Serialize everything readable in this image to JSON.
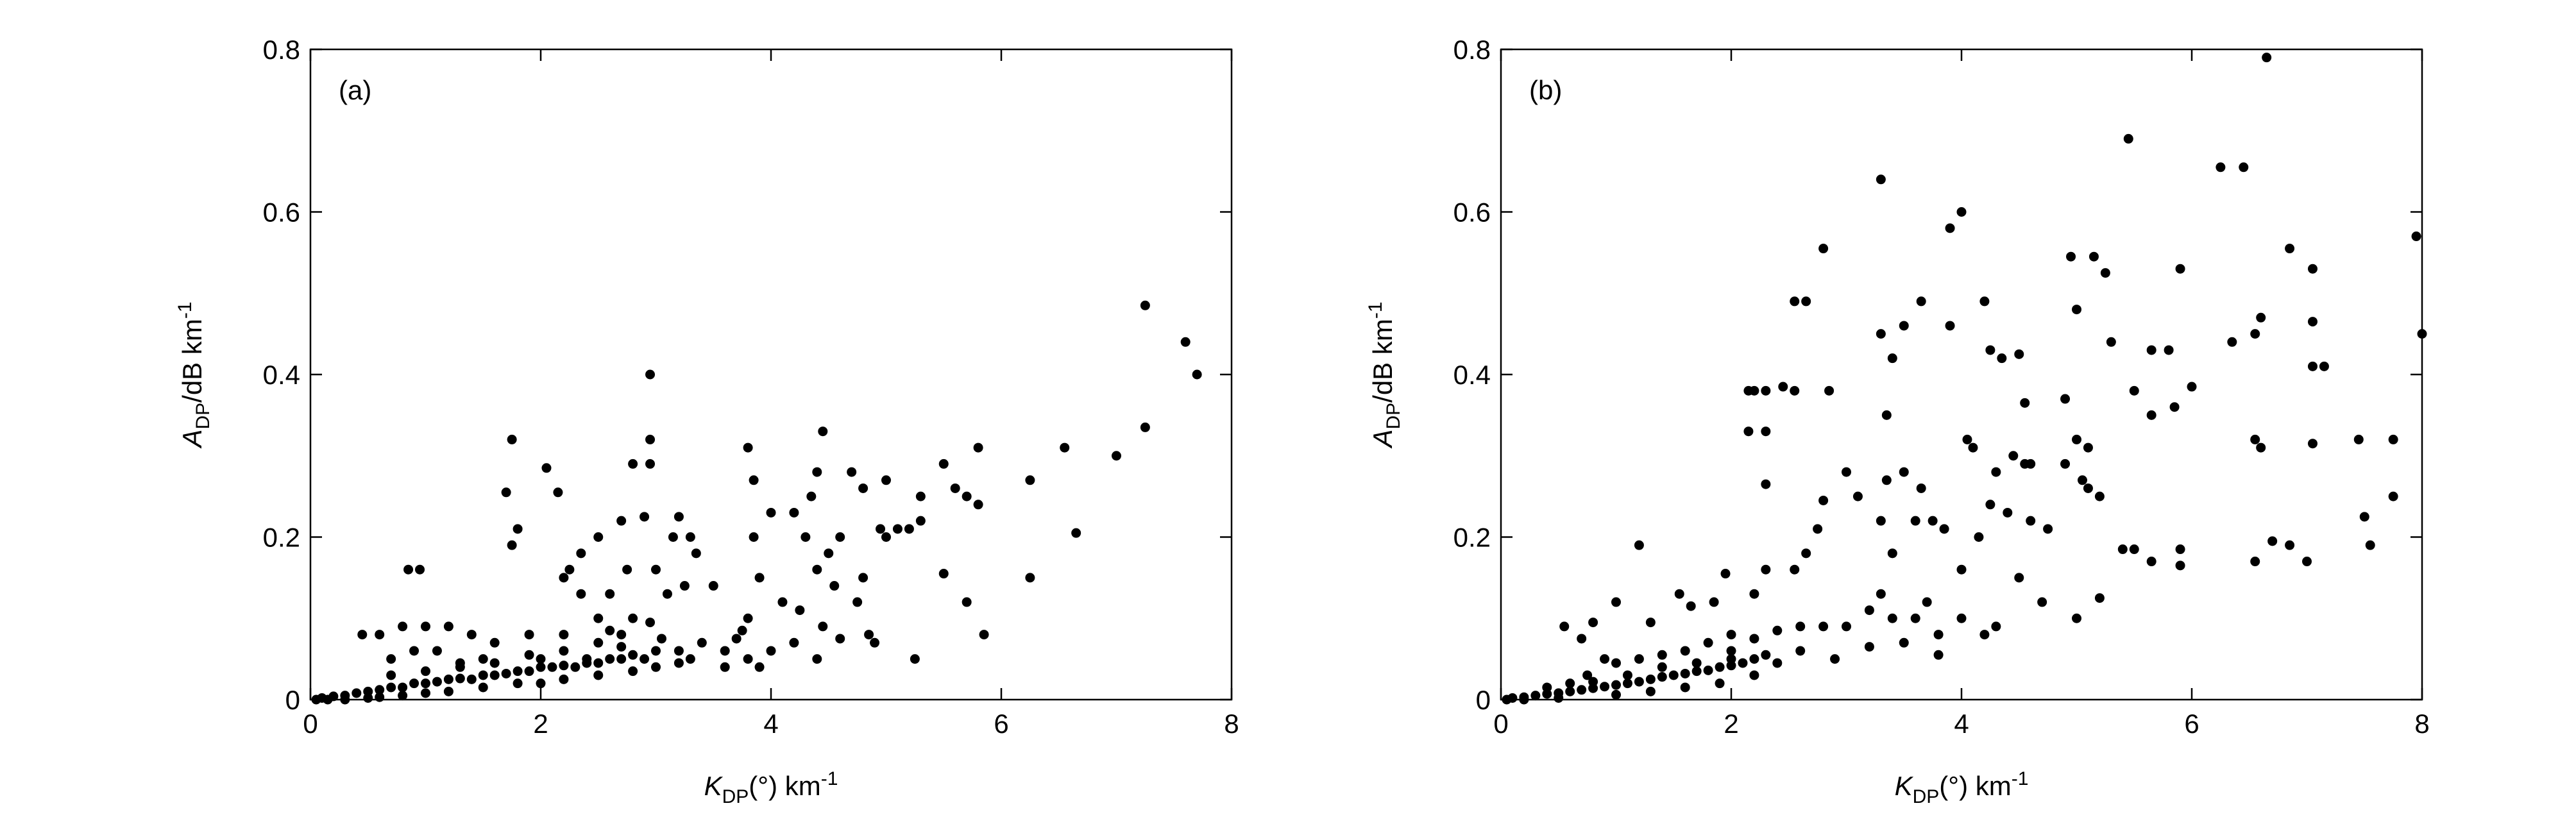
{
  "chart_data": [
    {
      "type": "scatter",
      "panel_label": "(a)",
      "color": "#000000",
      "x_label": {
        "main": "K",
        "sub": "DP",
        "rest": "(°) km",
        "sup": "-1"
      },
      "y_label": {
        "main": "A",
        "sub": "DP",
        "rest": "/dB km",
        "sup": "-1"
      },
      "xlim": [
        0,
        8
      ],
      "ylim": [
        0,
        0.8
      ],
      "xticks": [
        0,
        2,
        4,
        6,
        8
      ],
      "yticks": [
        0,
        0.2,
        0.4,
        0.6,
        0.8
      ],
      "x": [
        7.25,
        7.6,
        7.7,
        2.95,
        1.75,
        2.95,
        3.8,
        4.45,
        1.7,
        2.05,
        2.15,
        2.8,
        2.95,
        7.25,
        7.0,
        6.55,
        6.25,
        6.65,
        6.25,
        5.8,
        5.85,
        5.7,
        5.5,
        5.6,
        5.7,
        5.8,
        5.3,
        5.3,
        5.1,
        5.0,
        5.0,
        4.95,
        5.5,
        5.25,
        5.2,
        4.7,
        4.8,
        4.6,
        4.5,
        4.4,
        4.35,
        4.4,
        4.55,
        4.75,
        4.8,
        4.85,
        4.9,
        4.3,
        4.2,
        4.0,
        3.85,
        3.85,
        3.9,
        3.8,
        4.1,
        4.25,
        4.45,
        4.2,
        3.75,
        3.6,
        3.5,
        3.3,
        3.35,
        3.2,
        3.15,
        3.0,
        2.9,
        2.7,
        2.5,
        2.35,
        2.25,
        2.35,
        2.2,
        1.8,
        1.75,
        2.6,
        2.75,
        3.1,
        3.25,
        0.95,
        0.85,
        1.2,
        1.0,
        0.8,
        0.6,
        0.45,
        1.4,
        1.6,
        1.9,
        2.2,
        2.5,
        2.6,
        2.8,
        2.95,
        3.05,
        2.7,
        3.2,
        3.4,
        3.6,
        3.8,
        4.0,
        4.4,
        4.6,
        3.7,
        3.9,
        2.4,
        2.0,
        1.5,
        0.7,
        0.9,
        1.1,
        1.3,
        0.1,
        0.2,
        0.3,
        0.4,
        0.5,
        0.6,
        0.7,
        0.8,
        0.9,
        1.0,
        1.1,
        1.2,
        1.3,
        1.4,
        1.5,
        1.6,
        1.7,
        1.8,
        1.9,
        2.0,
        2.1,
        2.2,
        2.3,
        2.4,
        2.5,
        2.6,
        2.7,
        2.8,
        2.9,
        3.0,
        0.5,
        0.8,
        1.0,
        1.2,
        1.5,
        1.8,
        2.0,
        2.2,
        2.5,
        2.8,
        3.0,
        3.2,
        0.3,
        0.6,
        0.05,
        0.15,
        0.7,
        1.0,
        1.3,
        1.6,
        1.9,
        2.2,
        2.5,
        2.7,
        3.3
      ],
      "values": [
        0.485,
        0.44,
        0.4,
        0.4,
        0.32,
        0.32,
        0.31,
        0.33,
        0.255,
        0.285,
        0.255,
        0.29,
        0.29,
        0.335,
        0.3,
        0.31,
        0.27,
        0.205,
        0.15,
        0.31,
        0.08,
        0.12,
        0.29,
        0.26,
        0.25,
        0.24,
        0.25,
        0.22,
        0.21,
        0.27,
        0.2,
        0.21,
        0.155,
        0.05,
        0.21,
        0.28,
        0.26,
        0.2,
        0.18,
        0.28,
        0.25,
        0.16,
        0.14,
        0.12,
        0.15,
        0.08,
        0.07,
        0.2,
        0.23,
        0.23,
        0.27,
        0.2,
        0.15,
        0.1,
        0.12,
        0.11,
        0.09,
        0.07,
        0.085,
        0.06,
        0.14,
        0.2,
        0.18,
        0.225,
        0.2,
        0.16,
        0.225,
        0.22,
        0.2,
        0.18,
        0.16,
        0.13,
        0.15,
        0.21,
        0.19,
        0.13,
        0.16,
        0.13,
        0.14,
        0.16,
        0.16,
        0.09,
        0.09,
        0.09,
        0.08,
        0.08,
        0.08,
        0.07,
        0.08,
        0.08,
        0.1,
        0.085,
        0.1,
        0.095,
        0.075,
        0.065,
        0.06,
        0.07,
        0.04,
        0.05,
        0.06,
        0.05,
        0.075,
        0.075,
        0.04,
        0.05,
        0.05,
        0.05,
        0.05,
        0.06,
        0.06,
        0.045,
        0.002,
        0.004,
        0.005,
        0.008,
        0.01,
        0.012,
        0.015,
        0.015,
        0.02,
        0.02,
        0.022,
        0.025,
        0.026,
        0.025,
        0.03,
        0.03,
        0.032,
        0.035,
        0.035,
        0.04,
        0.04,
        0.042,
        0.04,
        0.045,
        0.045,
        0.05,
        0.05,
        0.055,
        0.05,
        0.06,
        0.002,
        0.005,
        0.008,
        0.01,
        0.015,
        0.02,
        0.02,
        0.025,
        0.03,
        0.035,
        0.04,
        0.045,
        0,
        0.003,
        0,
        0,
        0.03,
        0.035,
        0.04,
        0.045,
        0.055,
        0.06,
        0.07,
        0.08,
        0.05
      ]
    },
    {
      "type": "scatter",
      "panel_label": "(b)",
      "color": "#000000",
      "x_label": {
        "main": "K",
        "sub": "DP",
        "rest": "(°) km",
        "sup": "-1"
      },
      "y_label": {
        "main": "A",
        "sub": "DP",
        "rest": "/dB km",
        "sup": "-1"
      },
      "xlim": [
        0,
        8
      ],
      "ylim": [
        0,
        0.8
      ],
      "xticks": [
        0,
        2,
        4,
        6,
        8
      ],
      "yticks": [
        0,
        0.2,
        0.4,
        0.6,
        0.8
      ],
      "x": [
        6.65,
        5.45,
        6.25,
        6.45,
        3.3,
        4.0,
        3.9,
        7.95,
        2.8,
        6.85,
        4.95,
        5.15,
        5.25,
        5.9,
        7.05,
        2.55,
        2.65,
        3.65,
        4.2,
        5.0,
        4.5,
        5.3,
        6.6,
        6.55,
        7.05,
        8.0,
        3.5,
        3.3,
        3.4,
        3.9,
        4.25,
        4.35,
        5.65,
        5.8,
        6.0,
        6.35,
        7.05,
        7.15,
        4.9,
        4.55,
        2.15,
        2.2,
        2.3,
        2.45,
        2.55,
        2.15,
        2.3,
        2.3,
        2.85,
        3.35,
        4.05,
        4.1,
        5.0,
        5.1,
        4.9,
        4.45,
        4.55,
        4.6,
        5.5,
        5.65,
        5.85,
        6.55,
        6.6,
        7.05,
        7.45,
        7.75,
        7.75,
        7.5,
        7.55,
        6.7,
        6.85,
        7.0,
        6.55,
        5.9,
        5.9,
        5.65,
        5.4,
        5.5,
        5.05,
        5.1,
        5.2,
        4.75,
        4.6,
        4.4,
        4.3,
        4.25,
        4.15,
        3.85,
        3.75,
        3.65,
        3.5,
        3.35,
        3.3,
        3.1,
        3.0,
        2.8,
        2.75,
        2.65,
        2.55,
        2.3,
        2.2,
        1.95,
        1.85,
        1.65,
        1.2,
        1.0,
        0.8,
        0.55,
        0.7,
        1.3,
        1.55,
        3.4,
        3.6,
        4.0,
        4.5,
        4.7,
        5.0,
        5.2,
        4.3,
        4.0,
        3.8,
        3.6,
        3.3,
        3.2,
        3.0,
        2.8,
        2.6,
        2.4,
        2.2,
        2.0,
        1.8,
        1.6,
        1.4,
        1.2,
        1.0,
        0.9,
        2.6,
        2.9,
        3.2,
        3.5,
        3.8,
        4.2,
        2.4,
        2.0,
        0.75,
        3.7,
        3.4,
        0.1,
        0.2,
        0.3,
        0.4,
        0.5,
        0.6,
        0.7,
        0.8,
        0.9,
        1.0,
        1.1,
        1.2,
        1.3,
        1.4,
        1.5,
        1.6,
        1.7,
        1.8,
        1.9,
        2.0,
        2.1,
        2.2,
        2.3,
        0.5,
        1.0,
        1.3,
        1.6,
        1.9,
        2.2,
        0.05,
        0.2,
        0.8,
        1.1,
        1.4,
        1.7,
        2.0,
        0.4,
        0.6
      ],
      "values": [
        0.79,
        0.69,
        0.655,
        0.655,
        0.64,
        0.6,
        0.58,
        0.57,
        0.555,
        0.555,
        0.545,
        0.545,
        0.525,
        0.53,
        0.53,
        0.49,
        0.49,
        0.49,
        0.49,
        0.48,
        0.425,
        0.44,
        0.47,
        0.45,
        0.465,
        0.45,
        0.46,
        0.45,
        0.42,
        0.46,
        0.43,
        0.42,
        0.43,
        0.43,
        0.385,
        0.44,
        0.41,
        0.41,
        0.37,
        0.365,
        0.38,
        0.38,
        0.38,
        0.385,
        0.38,
        0.33,
        0.33,
        0.265,
        0.38,
        0.35,
        0.32,
        0.31,
        0.32,
        0.31,
        0.29,
        0.3,
        0.29,
        0.29,
        0.38,
        0.35,
        0.36,
        0.32,
        0.31,
        0.315,
        0.32,
        0.32,
        0.25,
        0.225,
        0.19,
        0.195,
        0.19,
        0.17,
        0.17,
        0.185,
        0.165,
        0.17,
        0.185,
        0.185,
        0.27,
        0.26,
        0.25,
        0.21,
        0.22,
        0.23,
        0.28,
        0.24,
        0.2,
        0.21,
        0.22,
        0.26,
        0.28,
        0.27,
        0.22,
        0.25,
        0.28,
        0.245,
        0.21,
        0.18,
        0.16,
        0.16,
        0.13,
        0.155,
        0.12,
        0.115,
        0.19,
        0.12,
        0.095,
        0.09,
        0.075,
        0.095,
        0.13,
        0.18,
        0.22,
        0.16,
        0.15,
        0.12,
        0.1,
        0.125,
        0.09,
        0.1,
        0.08,
        0.1,
        0.13,
        0.11,
        0.09,
        0.09,
        0.09,
        0.085,
        0.075,
        0.08,
        0.07,
        0.06,
        0.055,
        0.05,
        0.045,
        0.05,
        0.06,
        0.05,
        0.065,
        0.07,
        0.055,
        0.08,
        0.045,
        0.05,
        0.03,
        0.12,
        0.1,
        0.002,
        0.003,
        0.005,
        0.007,
        0.008,
        0.01,
        0.012,
        0.014,
        0.016,
        0.018,
        0.02,
        0.022,
        0.025,
        0.028,
        0.03,
        0.032,
        0.035,
        0.036,
        0.04,
        0.042,
        0.045,
        0.05,
        0.055,
        0.002,
        0.006,
        0.01,
        0.015,
        0.02,
        0.03,
        0,
        0,
        0.022,
        0.03,
        0.04,
        0.045,
        0.06,
        0.015,
        0.02
      ]
    }
  ]
}
